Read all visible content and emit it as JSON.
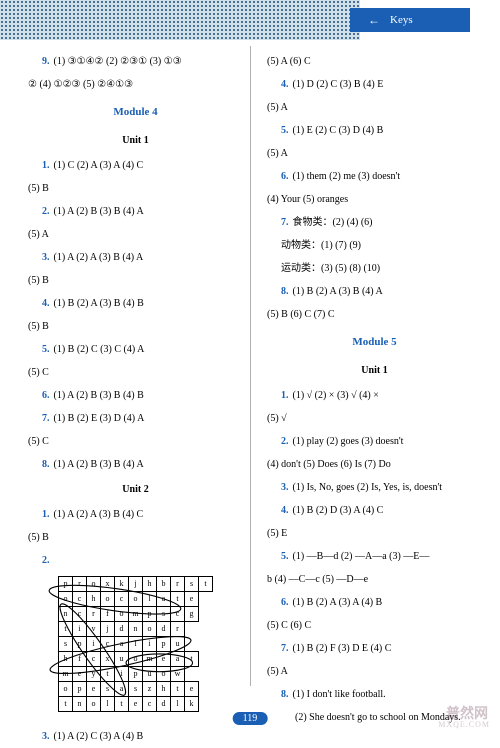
{
  "header": {
    "tab_label": "Keys",
    "arrow": "←"
  },
  "page_number": "119",
  "watermark": {
    "main": "普然网",
    "sub": "MXQE.COM"
  },
  "left": {
    "l1": {
      "q": "9.",
      "t": "(1) ③①④②    (2) ②③①    (3) ①③"
    },
    "l2": "②    (4) ①②③    (5) ②④①③",
    "module4": "Module 4",
    "unit1": "Unit 1",
    "l3": {
      "q": "1.",
      "t": "(1) C    (2) A    (3) A    (4) C"
    },
    "l4": "(5) B",
    "l5": {
      "q": "2.",
      "t": "(1) A    (2) B    (3) B    (4) A"
    },
    "l6": "(5) A",
    "l7": {
      "q": "3.",
      "t": "(1) A    (2) A    (3) B    (4) A"
    },
    "l8": "(5) B",
    "l9": {
      "q": "4.",
      "t": "(1) B    (2) A    (3) B    (4) B"
    },
    "l10": "(5) B",
    "l11": {
      "q": "5.",
      "t": "(1) B    (2) C    (3) C    (4) A"
    },
    "l12": "(5) C",
    "l13": {
      "q": "6.",
      "t": "(1) A    (2) B    (3) B    (4) B"
    },
    "l14": {
      "q": "7.",
      "t": "(1) B    (2) E    (3) D    (4) A"
    },
    "l15": "(5) C",
    "l16": {
      "q": "8.",
      "t": "(1) A    (2) B    (3) B    (4) A"
    },
    "unit2": "Unit 2",
    "l17": {
      "q": "1.",
      "t": "(1) A    (2) A    (3) B    (4) C"
    },
    "l18": "(5) B",
    "l19": "2.",
    "l20": {
      "q": "3.",
      "t": "(1) A    (2) C    (3) A    (4) B"
    }
  },
  "grid": {
    "rows": [
      [
        "p",
        "r",
        "o",
        "x",
        "k",
        "j",
        "h",
        "b",
        "r",
        "s",
        "t"
      ],
      [
        "o",
        "c",
        "h",
        "o",
        "c",
        "o",
        "l",
        "a",
        "t",
        "e"
      ],
      [
        "n",
        "c",
        "r",
        "f",
        "o",
        "m",
        "p",
        "s",
        "c",
        "g"
      ],
      [
        "t",
        "i",
        "v",
        "j",
        "d",
        "n",
        "o",
        "d",
        "r"
      ],
      [
        "s",
        "p",
        "i",
        "c",
        "a",
        "l",
        "i",
        "p",
        "u"
      ],
      [
        "h",
        "f",
        "c",
        "x",
        "u",
        "o",
        "m",
        "e",
        "a",
        "t"
      ],
      [
        "m",
        "e",
        "y",
        "t",
        "i",
        "p",
        "u",
        "o",
        "w"
      ],
      [
        "o",
        "p",
        "e",
        "s",
        "a",
        "s",
        "z",
        "h",
        "t",
        "e"
      ],
      [
        "t",
        "n",
        "o",
        "l",
        "t",
        "e",
        "c",
        "d",
        "l",
        "k"
      ]
    ]
  },
  "right": {
    "l1": "(5) A    (6) C",
    "l2": {
      "q": "4.",
      "t": "(1) D    (2) C    (3) B    (4) E"
    },
    "l3": "(5) A",
    "l4": {
      "q": "5.",
      "t": "(1) E    (2) C    (3) D    (4) B"
    },
    "l5": "(5) A",
    "l6": {
      "q": "6.",
      "t": "(1) them    (2) me    (3) doesn't"
    },
    "l7": "(4) Your    (5) oranges",
    "l8": {
      "q": "7.",
      "t": "食物类：(2)  (4)  (6)"
    },
    "l9": "动物类：(1)  (7)  (9)",
    "l10": "运动类：(3)  (5)  (8)  (10)",
    "l11": {
      "q": "8.",
      "t": "(1) B    (2) A    (3) B    (4) A"
    },
    "l12": "(5) B    (6) C    (7) C",
    "module5": "Module 5",
    "unit1": "Unit 1",
    "l13": {
      "q": "1.",
      "t": "(1) √    (2) ×    (3) √    (4) ×"
    },
    "l14": "(5) √",
    "l15": {
      "q": "2.",
      "t": "(1) play    (2) goes    (3) doesn't"
    },
    "l16": "(4) don't    (5) Does    (6) Is    (7) Do",
    "l17": {
      "q": "3.",
      "t": "(1) Is, No, goes    (2) Is, Yes, is, doesn't"
    },
    "l18": {
      "q": "4.",
      "t": "(1) B    (2) D    (3) A    (4) C"
    },
    "l19": "(5) E",
    "l20": {
      "q": "5.",
      "t": "(1) —B—d    (2) —A—a    (3) —E—"
    },
    "l21": "b    (4) —C—c    (5) —D—e",
    "l22": {
      "q": "6.",
      "t": "(1) B    (2) A    (3) A    (4) B"
    },
    "l23": "(5) C    (6) C",
    "l24": {
      "q": "7.",
      "t": "(1) B    (2) F    (3) D  E    (4) C"
    },
    "l25": "(5) A",
    "l26": {
      "q": "8.",
      "t": "(1) I don't like football."
    },
    "l27": "(2) She doesn't go to school on Mondays."
  }
}
